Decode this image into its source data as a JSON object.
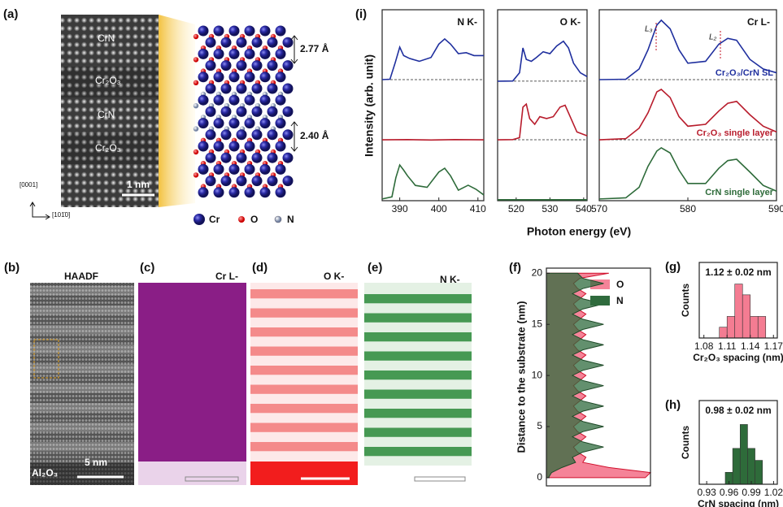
{
  "figure": {
    "panel_a": {
      "label": "(a)",
      "image_labels": [
        "CrN",
        "Cr₂O₃",
        "CrN",
        "Cr₂O₃"
      ],
      "scale_bar": "1 nm",
      "axis_up": "[0001]",
      "axis_right": "[101̄0]",
      "spacings": [
        "2.77 Å",
        "2.40 Å"
      ],
      "legend": [
        "Cr",
        "O",
        "N"
      ]
    },
    "panel_b": {
      "label": "(b)",
      "title": "HAADF",
      "substrate": "Al₂O₃",
      "scale_bar": "5 nm"
    },
    "panel_c": {
      "label": "(c)",
      "title": "Cr L-"
    },
    "panel_d": {
      "label": "(d)",
      "title": "O K-"
    },
    "panel_e": {
      "label": "(e)",
      "title": "N K-"
    },
    "panel_i": {
      "label": "(i)",
      "ylabel": "Intensity (arb. unit)",
      "xlabel": "Photon energy (eV)"
    }
  },
  "chart_data": [
    {
      "type": "line",
      "title": "N K-",
      "xlim": [
        385.5,
        411.5
      ],
      "xticks": [
        390,
        400,
        410
      ],
      "ylim": [
        0,
        10
      ],
      "baselines": [
        6.34,
        3.19
      ],
      "series": [
        {
          "color": "#1f2f9e",
          "x": [
            385.5,
            387.5,
            388.8,
            390,
            391,
            392.5,
            395,
            398,
            400,
            401.5,
            403,
            405,
            407,
            409,
            411.5
          ],
          "values": [
            6.34,
            6.36,
            7.2,
            8.04,
            7.6,
            7.45,
            7.3,
            7.5,
            8.2,
            8.47,
            8.2,
            7.7,
            7.75,
            7.6,
            7.6
          ]
        },
        {
          "color": "#b81c2c",
          "x": [
            385.5,
            392,
            398,
            404,
            411.5
          ],
          "values": [
            3.19,
            3.2,
            3.18,
            3.2,
            3.19
          ]
        },
        {
          "color": "#2e6b3a",
          "x": [
            385.5,
            388,
            389,
            390,
            391,
            392,
            394,
            397,
            400,
            401.5,
            403,
            405,
            407.5,
            409.5,
            411.5
          ],
          "values": [
            0.09,
            0.2,
            1.2,
            1.87,
            1.6,
            1.3,
            0.8,
            0.7,
            1.5,
            1.7,
            1.3,
            0.55,
            0.81,
            0.6,
            0.3
          ]
        }
      ]
    },
    {
      "type": "line",
      "title": "O K-",
      "xlim": [
        514.5,
        541
      ],
      "xticks": [
        520,
        530,
        540
      ],
      "ylim": [
        0,
        10
      ],
      "baselines": [
        6.26,
        3.19
      ],
      "series": [
        {
          "color": "#1f2f9e",
          "x": [
            514.5,
            519,
            521,
            522,
            523,
            524.5,
            526,
            528,
            530,
            532,
            534,
            535.5,
            537,
            539,
            541
          ],
          "values": [
            6.26,
            6.27,
            6.7,
            8.0,
            7.4,
            7.3,
            7.5,
            7.8,
            7.7,
            8.1,
            8.35,
            8.0,
            7.2,
            6.7,
            6.5
          ]
        },
        {
          "color": "#b81c2c",
          "x": [
            514.5,
            519,
            521,
            522,
            523,
            524,
            525.5,
            527,
            529,
            531,
            533,
            534.5,
            536,
            538,
            541
          ],
          "values": [
            3.19,
            3.2,
            3.3,
            4.9,
            5.06,
            4.3,
            4.0,
            4.4,
            4.3,
            4.4,
            4.9,
            5.0,
            4.4,
            3.6,
            3.4
          ]
        },
        {
          "color": "#2e6b3a",
          "x": [
            514.5,
            541
          ],
          "values": [
            0.05,
            0.05
          ]
        }
      ]
    },
    {
      "type": "line",
      "title": "Cr L-",
      "xlim": [
        570,
        590
      ],
      "xticks": [
        570,
        580,
        590
      ],
      "ylim": [
        0,
        10
      ],
      "baselines": [
        6.34,
        3.19
      ],
      "annotations": [
        "L₃",
        "L₂"
      ],
      "series": [
        {
          "name": "Cr₂O₃/CrN SL",
          "color": "#1f2f9e",
          "x": [
            570,
            573,
            574.5,
            575.5,
            576.5,
            577,
            578,
            579,
            580,
            582,
            583.5,
            584.5,
            585.5,
            587,
            588.5,
            590
          ],
          "values": [
            6.34,
            6.36,
            6.9,
            7.9,
            9.2,
            9.45,
            9.0,
            7.9,
            7.2,
            7.3,
            8.2,
            8.5,
            8.4,
            7.4,
            6.9,
            6.7
          ]
        },
        {
          "name": "Cr₂O₃ single layer",
          "color": "#b81c2c",
          "x": [
            570,
            573,
            574.5,
            575.5,
            576.5,
            577,
            578,
            579,
            580,
            582,
            583.5,
            584.5,
            585.5,
            587,
            588.5,
            590
          ],
          "values": [
            3.19,
            3.25,
            3.8,
            4.6,
            5.7,
            5.83,
            5.4,
            4.4,
            3.9,
            4.0,
            4.7,
            5.1,
            5.2,
            4.5,
            3.9,
            3.6
          ]
        },
        {
          "name": "CrN single layer",
          "color": "#2e6b3a",
          "x": [
            570,
            573,
            574.5,
            575.5,
            576.5,
            577,
            578,
            579,
            580,
            582,
            583.5,
            584.5,
            585.5,
            587,
            588.5,
            590
          ],
          "values": [
            0.09,
            0.15,
            0.7,
            1.8,
            2.6,
            2.77,
            2.5,
            1.6,
            0.9,
            0.9,
            1.7,
            2.1,
            2.17,
            1.5,
            0.8,
            0.5
          ]
        }
      ]
    },
    {
      "type": "area",
      "label": "(f)",
      "ylabel": "Distance to the substrate (nm)",
      "xlim": [
        0,
        1
      ],
      "ylim": [
        -0.8,
        20.5
      ],
      "yticks": [
        0,
        5,
        10,
        15,
        20
      ],
      "y": [
        0,
        0.5,
        1,
        1.5,
        2,
        2.5,
        3,
        3.5,
        4,
        4.5,
        5,
        5.5,
        6,
        6.5,
        7,
        7.5,
        8,
        8.5,
        9,
        9.5,
        10,
        10.5,
        11,
        11.5,
        12,
        12.5,
        13,
        13.5,
        14,
        14.5,
        15,
        15.5,
        16,
        16.5,
        17,
        17.5,
        18,
        18.5,
        19,
        19.5,
        20
      ],
      "series": [
        {
          "name": "O",
          "color": "#f47c92",
          "values": [
            0.95,
            1.0,
            0.6,
            0.35,
            0.38,
            0.3,
            0.26,
            0.32,
            0.38,
            0.3,
            0.26,
            0.32,
            0.38,
            0.3,
            0.26,
            0.32,
            0.38,
            0.3,
            0.26,
            0.32,
            0.38,
            0.3,
            0.26,
            0.32,
            0.38,
            0.3,
            0.26,
            0.32,
            0.38,
            0.3,
            0.26,
            0.32,
            0.38,
            0.3,
            0.26,
            0.32,
            0.38,
            0.3,
            0.26,
            0.32,
            0.6
          ]
        },
        {
          "name": "N",
          "color": "#2f6b3d",
          "values": [
            0.02,
            0.05,
            0.15,
            0.28,
            0.25,
            0.35,
            0.55,
            0.35,
            0.25,
            0.35,
            0.55,
            0.35,
            0.25,
            0.35,
            0.55,
            0.35,
            0.25,
            0.35,
            0.55,
            0.35,
            0.25,
            0.35,
            0.55,
            0.35,
            0.25,
            0.35,
            0.55,
            0.35,
            0.25,
            0.35,
            0.55,
            0.35,
            0.25,
            0.35,
            0.55,
            0.35,
            0.25,
            0.35,
            0.55,
            0.35,
            0.3
          ]
        }
      ]
    },
    {
      "type": "histogram",
      "label": "(g)",
      "title": "1.12 ± 0.02 nm",
      "xlabel": "Cr₂O₃ spacing (nm)",
      "ylabel": "Counts",
      "color": "#f47c92",
      "bins": [
        1.1,
        1.11,
        1.12,
        1.13,
        1.14,
        1.15,
        1.16
      ],
      "values": [
        1,
        2,
        5,
        4,
        2,
        2
      ],
      "xlim": [
        1.074,
        1.175
      ],
      "xticks": [
        1.08,
        1.11,
        1.14,
        1.17
      ],
      "ylim": [
        0,
        7
      ]
    },
    {
      "type": "histogram",
      "label": "(h)",
      "title": "0.98 ± 0.02 nm",
      "xlabel": "CrN spacing (nm)",
      "ylabel": "Counts",
      "color": "#2e6b3a",
      "bins": [
        0.955,
        0.965,
        0.975,
        0.985,
        0.995,
        1.005
      ],
      "values": [
        1,
        3,
        5,
        3,
        2
      ],
      "xlim": [
        0.92,
        1.025
      ],
      "xticks": [
        0.93,
        0.96,
        0.99,
        1.02
      ],
      "ylim": [
        0,
        7
      ]
    }
  ]
}
